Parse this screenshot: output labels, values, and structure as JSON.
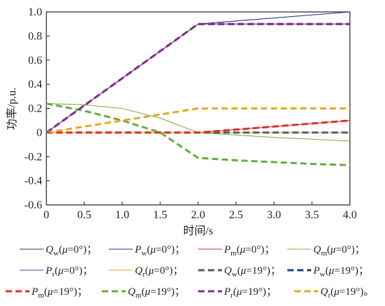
{
  "chart_data": {
    "type": "line",
    "xlabel": "时间/s",
    "ylabel": "功率/p.u.",
    "xlim": [
      0,
      4.0
    ],
    "ylim": [
      -0.6,
      1.0
    ],
    "x_ticks": [
      "0",
      "0.5",
      "1.0",
      "1.5",
      "2.0",
      "2.5",
      "3.0",
      "3.5",
      "4.0"
    ],
    "y_ticks": [
      "1.0",
      "0.8",
      "0.6",
      "0.4",
      "0.2",
      "0",
      "-0.2",
      "-0.4",
      "-0.6"
    ],
    "grid": false,
    "legend_placement": "bottom",
    "series": [
      {
        "id": "Qw0",
        "sym": "Q",
        "sub": "w",
        "mu": "0°",
        "sep": "；",
        "color": "#1f3f86",
        "dashed": false,
        "x": [
          0,
          4.0
        ],
        "y": [
          0,
          0
        ]
      },
      {
        "id": "Pw0",
        "sym": "P",
        "sub": "w",
        "mu": "0°",
        "sep": "；",
        "color": "#1f3f86",
        "dashed": false,
        "x": [
          0,
          2.0,
          4.0
        ],
        "y": [
          0,
          0.9,
          1.0
        ]
      },
      {
        "id": "Pm0",
        "sym": "P",
        "sub": "m",
        "mu": "0°",
        "sep": "；",
        "color": "#c0392b",
        "dashed": false,
        "x": [
          0,
          2.0,
          4.0
        ],
        "y": [
          0,
          0,
          0.1
        ]
      },
      {
        "id": "Qm0",
        "sym": "Q",
        "sub": "m",
        "mu": "0°",
        "sep": "；",
        "color": "#7fb24a",
        "dashed": false,
        "x": [
          0,
          0.5,
          1.0,
          1.5,
          2.0,
          2.5,
          3.0,
          3.5,
          4.0
        ],
        "y": [
          0.24,
          0.23,
          0.2,
          0.12,
          0.0,
          -0.02,
          -0.04,
          -0.055,
          -0.07
        ]
      },
      {
        "id": "Pr0",
        "sym": "P",
        "sub": "r",
        "mu": "0°",
        "sep": "；",
        "color": "#7a35a6",
        "dashed": false,
        "x": [
          0,
          2.0,
          4.0
        ],
        "y": [
          0,
          0.9,
          0.9
        ]
      },
      {
        "id": "Qr0",
        "sym": "Q",
        "sub": "r",
        "mu": "0°",
        "sep": "；",
        "color": "#e5a824",
        "dashed": false,
        "x": [
          0,
          4.0
        ],
        "y": [
          0,
          0
        ]
      },
      {
        "id": "Qw19",
        "sym": "Q",
        "sub": "w",
        "mu": "19°",
        "sep": "；",
        "color": "#5a5a6a",
        "dashed": true,
        "x": [
          0,
          4.0
        ],
        "y": [
          0,
          0
        ]
      },
      {
        "id": "Pw19",
        "sym": "P",
        "sub": "w",
        "mu": "19°",
        "sep": "；",
        "color": "#1f3f86",
        "dashed": true,
        "x": [
          0,
          2.0,
          4.0
        ],
        "y": [
          0,
          0.9,
          0.9
        ]
      },
      {
        "id": "Pm19",
        "sym": "P",
        "sub": "m",
        "mu": "19°",
        "sep": "；",
        "color": "#e0302a",
        "dashed": true,
        "x": [
          0,
          2.0,
          4.0
        ],
        "y": [
          0,
          0,
          0.1
        ]
      },
      {
        "id": "Qm19",
        "sym": "Q",
        "sub": "m",
        "mu": "19°",
        "sep": "；",
        "color": "#66ad3c",
        "dashed": true,
        "x": [
          0,
          0.5,
          1.0,
          1.5,
          2.0,
          2.5,
          3.0,
          3.5,
          4.0
        ],
        "y": [
          0.24,
          0.18,
          0.1,
          0.0,
          -0.21,
          -0.23,
          -0.245,
          -0.26,
          -0.27
        ]
      },
      {
        "id": "Pr19",
        "sym": "P",
        "sub": "r",
        "mu": "19°",
        "sep": "；",
        "color": "#8a2e8a",
        "dashed": true,
        "x": [
          0,
          2.0,
          4.0
        ],
        "y": [
          0,
          0.9,
          0.9
        ]
      },
      {
        "id": "Qr19",
        "sym": "Q",
        "sub": "r",
        "mu": "19°",
        "sep": "。",
        "color": "#e5a824",
        "dashed": true,
        "x": [
          0,
          2.0,
          4.0
        ],
        "y": [
          0,
          0.2,
          0.2
        ]
      }
    ]
  }
}
